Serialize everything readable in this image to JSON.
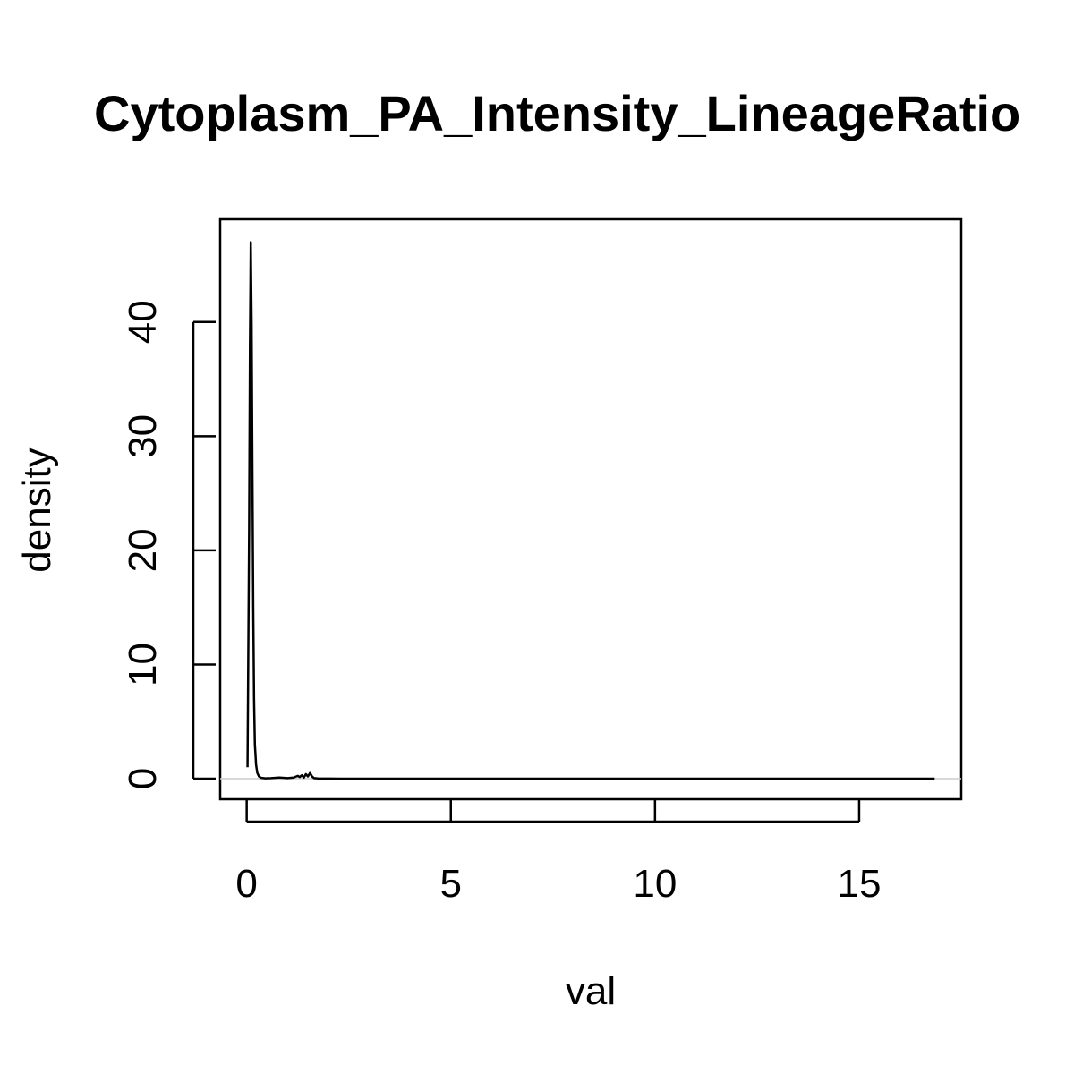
{
  "chart_data": {
    "type": "line",
    "title": "Cytoplasm_PA_Intensity_LineageRatio",
    "xlabel": "val",
    "ylabel": "density",
    "xlim": [
      -0.65,
      17.5
    ],
    "ylim": [
      -1.8,
      49
    ],
    "x_ticks": [
      0,
      5,
      10,
      15
    ],
    "y_ticks": [
      0,
      10,
      20,
      30,
      40
    ],
    "x_tick_labels": [
      "0",
      "5",
      "10",
      "15"
    ],
    "y_tick_labels": [
      "0",
      "10",
      "20",
      "30",
      "40"
    ],
    "grid": false,
    "legend": "none",
    "colors": {
      "line": "#000000",
      "baseline": "#cccccc"
    },
    "series": [
      {
        "x": [
          0.02,
          0.06,
          0.08,
          0.1,
          0.12,
          0.14,
          0.16,
          0.18,
          0.2,
          0.23,
          0.26,
          0.3,
          0.35,
          0.45,
          0.6,
          0.8,
          1.0,
          1.15,
          1.25,
          1.3,
          1.35,
          1.4,
          1.45,
          1.5,
          1.55,
          1.6,
          1.65,
          1.75,
          2.0,
          3.0,
          5.0,
          8.0,
          10.0,
          12.0,
          14.0,
          16.0,
          16.85
        ],
        "y": [
          1.0,
          22.0,
          38.0,
          47.0,
          40.0,
          27.0,
          15.0,
          7.0,
          3.0,
          1.2,
          0.5,
          0.2,
          0.08,
          0.03,
          0.05,
          0.1,
          0.05,
          0.1,
          0.25,
          0.15,
          0.3,
          0.1,
          0.4,
          0.2,
          0.5,
          0.2,
          0.05,
          0.02,
          0.01,
          0.0,
          0.0,
          0.0,
          0.0,
          0.0,
          0.0,
          0.0,
          0.0
        ]
      }
    ]
  }
}
